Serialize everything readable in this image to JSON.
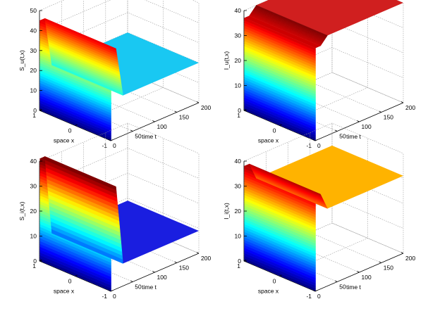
{
  "chart_data": [
    {
      "type": "surface",
      "zlabel": "S_u(t,x)",
      "xlabel": "space x",
      "tlabel": "time t",
      "zlim": [
        0,
        50
      ],
      "zticks": [
        0,
        10,
        20,
        30,
        40,
        50
      ],
      "tlim": [
        0,
        200
      ],
      "tticks": [
        0,
        50,
        100,
        150,
        200
      ],
      "xlim": [
        -1,
        1
      ],
      "xticks": [
        1,
        0,
        -1
      ],
      "peak_value": 45,
      "steady_value": 20,
      "colormap": "jet",
      "steady_color": "#19c8f2"
    },
    {
      "type": "surface",
      "zlabel": "I_u(t,x)",
      "xlabel": "space x",
      "tlabel": "time t",
      "zlim": [
        0,
        40
      ],
      "zticks": [
        0,
        10,
        20,
        30,
        40
      ],
      "tlim": [
        0,
        200
      ],
      "tticks": [
        0,
        50,
        100,
        150,
        200
      ],
      "xlim": [
        -1,
        1
      ],
      "xticks": [
        1,
        0,
        -1
      ],
      "peak_value": 37,
      "steady_value": 40,
      "colormap": "jet",
      "steady_color": "#d01f1f"
    },
    {
      "type": "surface",
      "zlabel": "S_i(t,x)",
      "xlabel": "space x",
      "tlabel": "time t",
      "zlim": [
        0,
        40
      ],
      "zticks": [
        0,
        10,
        20,
        30,
        40
      ],
      "tlim": [
        0,
        200
      ],
      "tticks": [
        0,
        50,
        100,
        150,
        200
      ],
      "xlim": [
        -1,
        1
      ],
      "xticks": [
        1,
        0,
        -1
      ],
      "peak_value": 41,
      "steady_value": 9,
      "colormap": "jet",
      "steady_color": "#1a1ee0"
    },
    {
      "type": "surface",
      "zlabel": "I_i(t,x)",
      "xlabel": "space x",
      "tlabel": "time t",
      "zlim": [
        0,
        40
      ],
      "zticks": [
        0,
        10,
        20,
        30,
        40
      ],
      "tlim": [
        0,
        200
      ],
      "tticks": [
        0,
        50,
        100,
        150,
        200
      ],
      "xlim": [
        -1,
        1
      ],
      "xticks": [
        1,
        0,
        -1
      ],
      "peak_value": 38,
      "steady_value": 31,
      "colormap": "jet",
      "steady_color": "#ffb300"
    }
  ]
}
